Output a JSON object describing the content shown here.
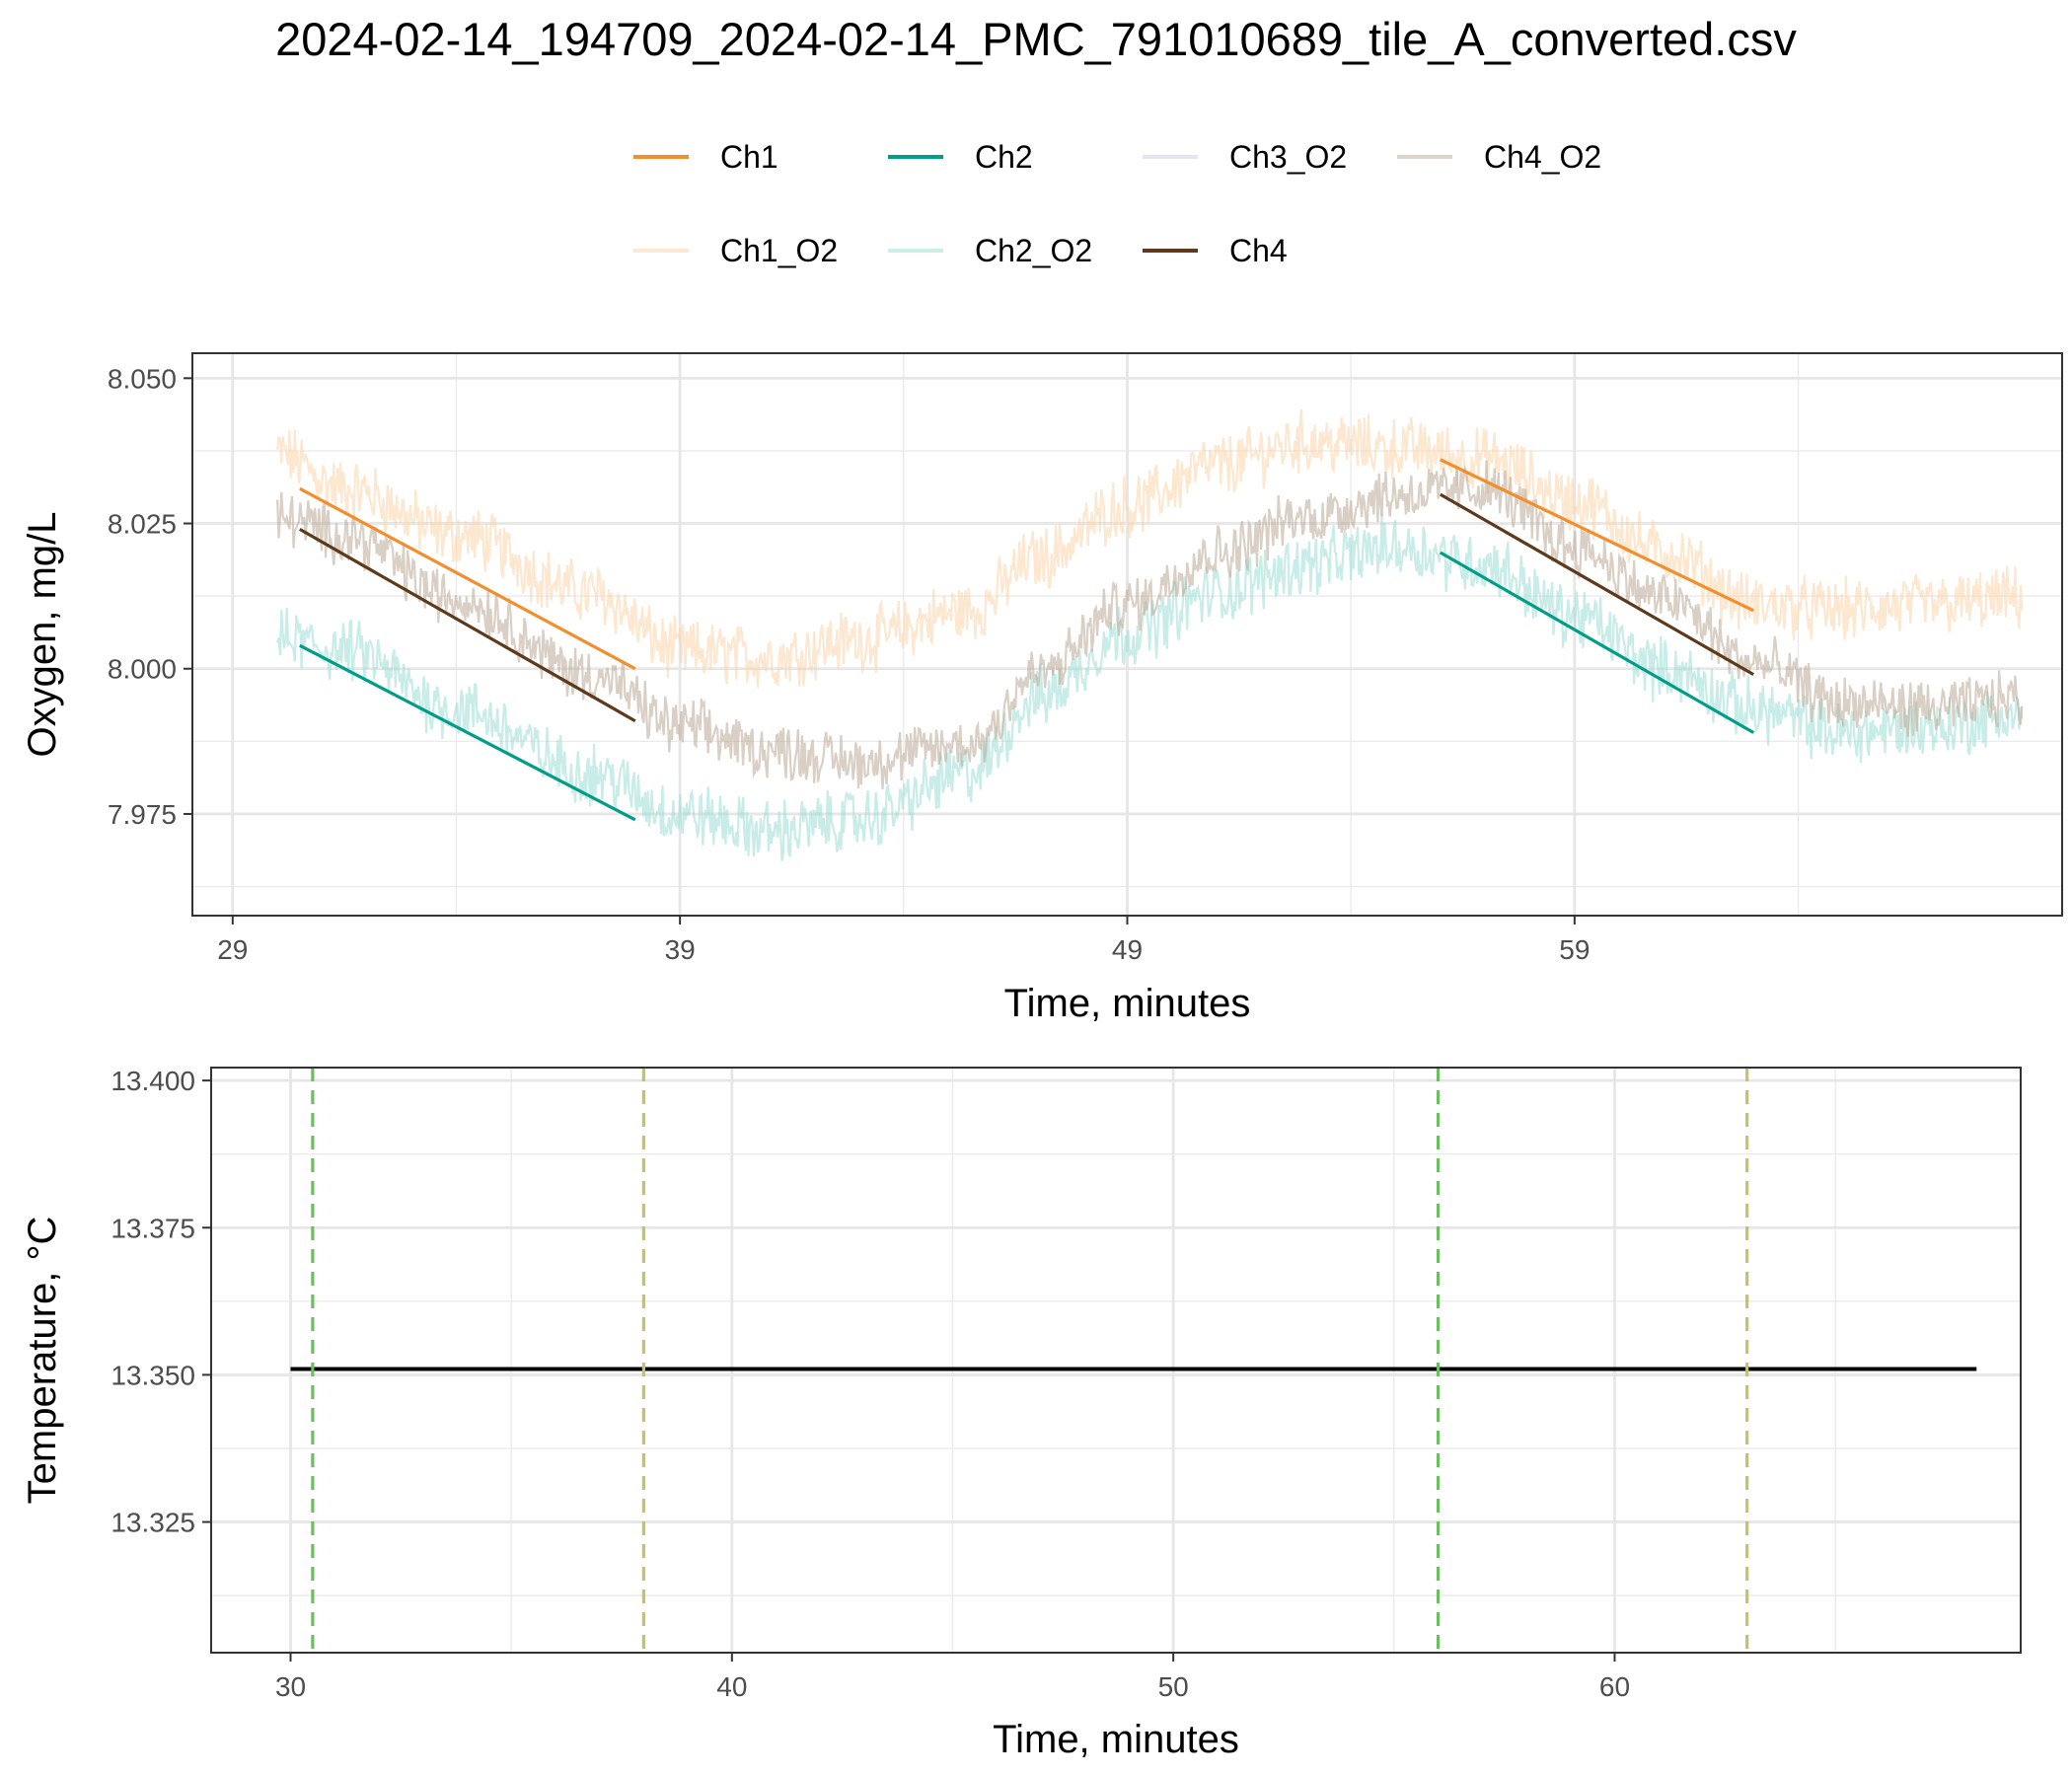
{
  "title": "2024-02-14_194709_2024-02-14_PMC_791010689_tile_A_converted.csv",
  "legend": {
    "placement": "top",
    "items": [
      {
        "label": "Ch1",
        "color": "#F28E2B",
        "alpha": 1.0
      },
      {
        "label": "Ch2",
        "color": "#009E88",
        "alpha": 1.0
      },
      {
        "label": "Ch3_O2",
        "color": "#C9C9EE",
        "alpha": 0.5
      },
      {
        "label": "Ch4_O2",
        "color": "#B9A894",
        "alpha": 0.5
      },
      {
        "label": "Ch1_O2",
        "color": "#FCD3A8",
        "alpha": 0.5
      },
      {
        "label": "Ch2_O2",
        "color": "#9ADDD3",
        "alpha": 0.5
      },
      {
        "label": "Ch4",
        "color": "#5C3A1B",
        "alpha": 1.0
      }
    ]
  },
  "chart_data": [
    {
      "type": "line",
      "xlabel": "Time, minutes",
      "ylabel": "Oxygen, mg/L",
      "xlim": [
        28.1,
        69.9
      ],
      "ylim": [
        7.9575,
        8.0543
      ],
      "xticks": [
        29,
        39,
        49,
        59
      ],
      "xtick_labels": [
        "29",
        "39",
        "49",
        "59"
      ],
      "yticks": [
        7.975,
        8.0,
        8.025,
        8.05
      ],
      "ytick_labels": [
        "7.975",
        "8.000",
        "8.025",
        "8.050"
      ],
      "grid": true,
      "noisy_series": [
        {
          "name": "Ch1_O2",
          "color": "#FCD3A8",
          "noise": 0.0045,
          "x": [
            30.0,
            31.5,
            34.0,
            37.0,
            39.0,
            41.0,
            43.0,
            45.5,
            47.0,
            49.0,
            51.0,
            53.0,
            55.0,
            57.0,
            59.0,
            61.0,
            63.0,
            65.0,
            67.0,
            69.0
          ],
          "y": [
            8.037,
            8.031,
            8.023,
            8.013,
            8.003,
            8.002,
            8.005,
            8.01,
            8.019,
            8.028,
            8.035,
            8.039,
            8.038,
            8.036,
            8.029,
            8.02,
            8.011,
            8.01,
            8.011,
            8.012
          ]
        },
        {
          "name": "Ch2_O2",
          "color": "#9ADDD3",
          "noise": 0.0045,
          "x": [
            30.0,
            31.5,
            34.0,
            37.0,
            39.0,
            41.0,
            43.0,
            45.5,
            47.0,
            49.0,
            51.0,
            53.0,
            55.0,
            57.0,
            59.0,
            61.0,
            63.0,
            65.0,
            67.0,
            69.0
          ],
          "y": [
            8.005,
            8.003,
            7.993,
            7.982,
            7.975,
            7.972,
            7.974,
            7.982,
            7.995,
            8.006,
            8.013,
            8.018,
            8.021,
            8.018,
            8.009,
            8.0,
            7.993,
            7.989,
            7.99,
            7.992
          ]
        },
        {
          "name": "Ch4_O2",
          "color": "#B9A894",
          "noise": 0.004,
          "x": [
            30.0,
            31.5,
            34.0,
            37.0,
            39.0,
            41.0,
            43.0,
            45.5,
            47.0,
            49.0,
            51.0,
            53.0,
            55.0,
            57.0,
            59.0,
            61.0,
            63.0,
            65.0,
            67.0,
            69.0
          ],
          "y": [
            8.026,
            8.023,
            8.012,
            7.999,
            7.99,
            7.986,
            7.984,
            7.987,
            7.999,
            8.011,
            8.02,
            8.026,
            8.03,
            8.031,
            8.021,
            8.012,
            8.001,
            7.994,
            7.993,
            7.995
          ]
        }
      ],
      "fit_lines": [
        {
          "name": "Ch1",
          "color": "#F28E2B",
          "x": [
            30.5,
            38.0
          ],
          "y": [
            8.031,
            8.0
          ]
        },
        {
          "name": "Ch4",
          "color": "#5C3A1B",
          "x": [
            30.5,
            38.0
          ],
          "y": [
            8.024,
            7.991
          ]
        },
        {
          "name": "Ch2",
          "color": "#009E88",
          "x": [
            30.5,
            38.0
          ],
          "y": [
            8.004,
            7.974
          ]
        },
        {
          "name": "Ch1",
          "color": "#F28E2B",
          "x": [
            56.0,
            63.0
          ],
          "y": [
            8.036,
            8.01
          ]
        },
        {
          "name": "Ch4",
          "color": "#5C3A1B",
          "x": [
            56.0,
            63.0
          ],
          "y": [
            8.03,
            7.999
          ]
        },
        {
          "name": "Ch2",
          "color": "#009E88",
          "x": [
            56.0,
            63.0
          ],
          "y": [
            8.02,
            7.989
          ]
        }
      ]
    },
    {
      "type": "line",
      "xlabel": "Time, minutes",
      "ylabel": "Temperature, °C",
      "xlim": [
        28.2,
        69.2
      ],
      "ylim": [
        13.3028,
        13.4022
      ],
      "xticks": [
        30,
        40,
        50,
        60
      ],
      "xtick_labels": [
        "30",
        "40",
        "50",
        "60"
      ],
      "yticks": [
        13.325,
        13.35,
        13.375,
        13.4
      ],
      "ytick_labels": [
        "13.325",
        "13.350",
        "13.375",
        "13.400"
      ],
      "grid": true,
      "series": [
        {
          "name": "Temperature",
          "color": "#000000",
          "x": [
            30.0,
            68.2
          ],
          "y": [
            13.351,
            13.351
          ]
        }
      ],
      "vlines": [
        {
          "x": 30.5,
          "color": "#6CBF5F",
          "style": "dashed"
        },
        {
          "x": 38.0,
          "color": "#C6C16B",
          "style": "dashed"
        },
        {
          "x": 56.0,
          "color": "#6CBF5F",
          "style": "dashed"
        },
        {
          "x": 63.0,
          "color": "#C6C16B",
          "style": "dashed"
        }
      ]
    }
  ]
}
